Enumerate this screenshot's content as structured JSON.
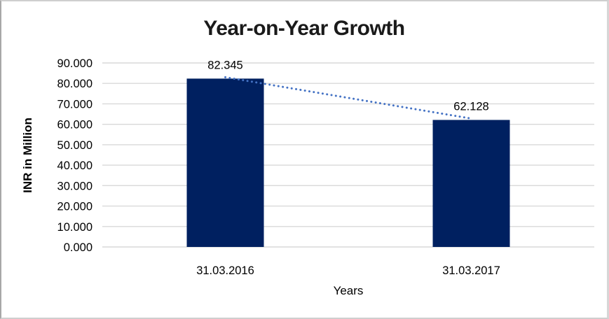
{
  "window": {
    "background": "#ffffff",
    "frame_border_color": "#c0c0c0"
  },
  "chart_data": {
    "type": "bar",
    "title": "Year-on-Year Growth",
    "xlabel": "Years",
    "ylabel": "INR in Million",
    "categories": [
      "31.03.2016",
      "31.03.2017"
    ],
    "values": [
      82.345,
      62.128
    ],
    "data_labels": [
      "82.345",
      "62.128"
    ],
    "ylim": [
      0,
      90
    ],
    "ytick_step": 10,
    "ytick_labels": [
      "0.000",
      "10.000",
      "20.000",
      "30.000",
      "40.000",
      "50.000",
      "60.000",
      "70.000",
      "80.000",
      "90.000"
    ],
    "grid": true,
    "legend": "none",
    "bar_color": "#002060",
    "gridline_color": "#d9d9d9",
    "axis_line_color": "#d9d9d9",
    "text_color": "#000000",
    "trendline": {
      "present": true,
      "style": "dotted",
      "color": "#4472c4"
    }
  }
}
